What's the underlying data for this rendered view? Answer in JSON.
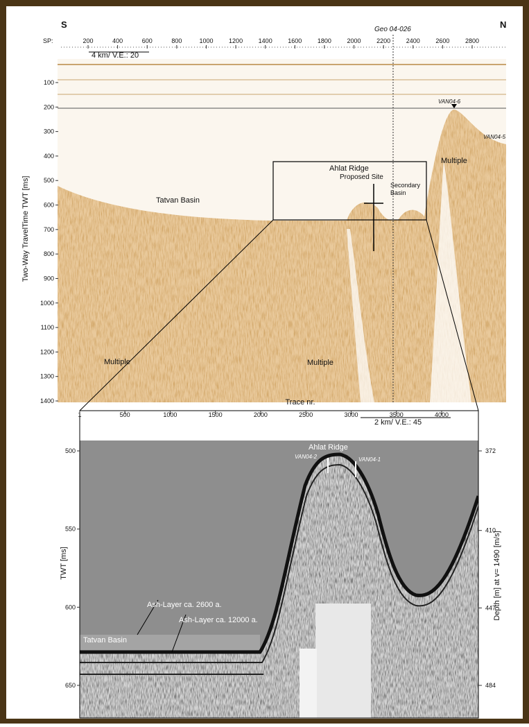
{
  "top_panel": {
    "left_label": "S",
    "right_label": "N",
    "profile_label": "Geo 04-026",
    "sp_label": "SP:",
    "sp_ticks": [
      200,
      400,
      600,
      800,
      1000,
      1200,
      1400,
      1600,
      1800,
      2000,
      2200,
      2400,
      2600,
      2800
    ],
    "scale_bar": "4 km/ V.E.: 20",
    "y_axis_title": "Two-Way TravelTime TWT [ms]",
    "y_ticks": [
      100,
      200,
      300,
      400,
      500,
      600,
      700,
      800,
      900,
      1000,
      1100,
      1200,
      1300,
      1400
    ],
    "annotations": [
      "Tatvan Basin",
      "Ahlat Ridge",
      "Proposed Site",
      "Secondary",
      "Basin",
      "Multiple",
      "Multiple",
      "Multiple",
      "VAN04-6",
      "VAN04-5"
    ]
  },
  "bottom_panel": {
    "x_axis_title": "Trace nr.",
    "x_ticks": [
      1,
      500,
      1000,
      1500,
      2000,
      2500,
      3000,
      3500,
      4000
    ],
    "scale_bar": "2 km/ V.E.: 45",
    "y_axis_title": "TWT [ms]",
    "y_ticks": [
      500,
      550,
      600,
      650
    ],
    "y2_axis_title": "Depth [m] at v= 1490 [m/s]",
    "y2_ticks": [
      372,
      410,
      447,
      484
    ],
    "annotations": [
      "Ahlat Ridge",
      "VAN04-2",
      "VAN04-1",
      "Ash-Layer ca. 2600 a.",
      "Ash-Layer ca. 12000 a.",
      "Tatvan Basin"
    ]
  }
}
